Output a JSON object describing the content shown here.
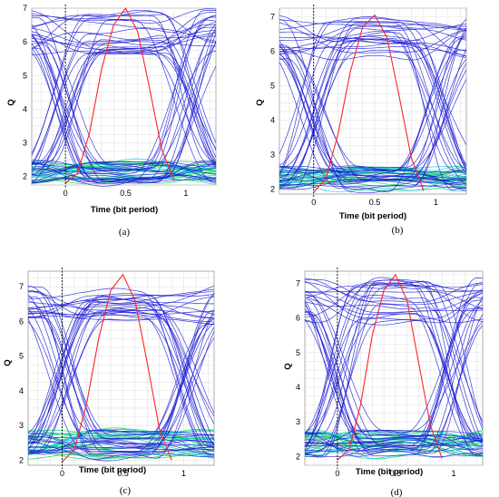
{
  "panels": [
    {
      "caption": "(a)",
      "chart_data": {
        "type": "line",
        "xlabel": "Time (bit period)",
        "ylabel": "Q",
        "xlim": [
          -0.28,
          1.25
        ],
        "ylim": [
          1.75,
          7.0
        ],
        "x_ticks": [
          "0",
          "0.5",
          "1"
        ],
        "y_ticks": [
          "2",
          "3",
          "4",
          "5",
          "6",
          "7"
        ],
        "grid": true,
        "series": [
          {
            "x": [
              0.0,
              0.1,
              0.2,
              0.3,
              0.4,
              0.5,
              0.6,
              0.7,
              0.8,
              0.9
            ],
            "y": [
              1.8,
              2.1,
              3.3,
              5.2,
              6.5,
              7.0,
              6.3,
              4.6,
              2.8,
              1.9
            ]
          }
        ],
        "eye": {
          "high_min": 5.6,
          "high_max": 6.95,
          "low_min": 1.8,
          "low_max": 2.45,
          "cross_q": 3.8
        }
      }
    },
    {
      "caption": "(b)",
      "chart_data": {
        "type": "line",
        "xlabel": "Time (bit period)",
        "ylabel": "Q",
        "xlim": [
          -0.28,
          1.25
        ],
        "ylim": [
          1.85,
          7.25
        ],
        "x_ticks": [
          "0",
          "0.5",
          "1"
        ],
        "y_ticks": [
          "2",
          "3",
          "4",
          "5",
          "6",
          "7"
        ],
        "grid": true,
        "series": [
          {
            "x": [
              0.0,
              0.1,
              0.2,
              0.3,
              0.4,
              0.5,
              0.6,
              0.7,
              0.8,
              0.9
            ],
            "y": [
              1.9,
              2.3,
              3.6,
              5.4,
              6.7,
              7.05,
              6.4,
              4.7,
              2.9,
              1.95
            ]
          }
        ],
        "eye": {
          "high_min": 5.8,
          "high_max": 7.0,
          "low_min": 1.95,
          "low_max": 2.65,
          "cross_q": 4.1
        }
      }
    },
    {
      "caption": "(c)",
      "chart_data": {
        "type": "line",
        "xlabel": "Time (bit period)",
        "ylabel": "Q",
        "xlim": [
          -0.28,
          1.25
        ],
        "ylim": [
          1.85,
          7.45
        ],
        "x_ticks": [
          "0",
          "0.5",
          "1"
        ],
        "y_ticks": [
          "2",
          "3",
          "4",
          "5",
          "6",
          "7"
        ],
        "grid": true,
        "series": [
          {
            "x": [
              0.0,
              0.1,
              0.2,
              0.3,
              0.4,
              0.5,
              0.6,
              0.7,
              0.8,
              0.9
            ],
            "y": [
              1.95,
              2.3,
              3.6,
              5.5,
              6.9,
              7.35,
              6.6,
              4.8,
              2.9,
              2.0
            ]
          }
        ],
        "eye": {
          "high_min": 5.9,
          "high_max": 7.05,
          "low_min": 2.05,
          "low_max": 2.85,
          "cross_q": 4.2
        }
      }
    },
    {
      "caption": "(d)",
      "chart_data": {
        "type": "line",
        "xlabel": "Time (bit period)",
        "ylabel": "Q",
        "xlim": [
          -0.28,
          1.25
        ],
        "ylim": [
          1.75,
          7.35
        ],
        "x_ticks": [
          "0",
          "0.5",
          "1"
        ],
        "y_ticks": [
          "2",
          "3",
          "4",
          "5",
          "6",
          "7"
        ],
        "grid": true,
        "series": [
          {
            "x": [
              0.0,
              0.1,
              0.2,
              0.3,
              0.4,
              0.5,
              0.6,
              0.7,
              0.8,
              0.9
            ],
            "y": [
              1.9,
              2.2,
              3.5,
              5.5,
              6.8,
              7.25,
              6.5,
              4.7,
              2.9,
              1.95
            ]
          }
        ],
        "eye": {
          "high_min": 5.8,
          "high_max": 7.15,
          "low_min": 1.95,
          "low_max": 2.75,
          "cross_q": 4.1
        }
      }
    }
  ],
  "colors": {
    "trace_blue": "#1b1bd6",
    "trace_cyan": "#14c8d8",
    "trace_green": "#26d86a",
    "trace_red": "#ff2222"
  }
}
